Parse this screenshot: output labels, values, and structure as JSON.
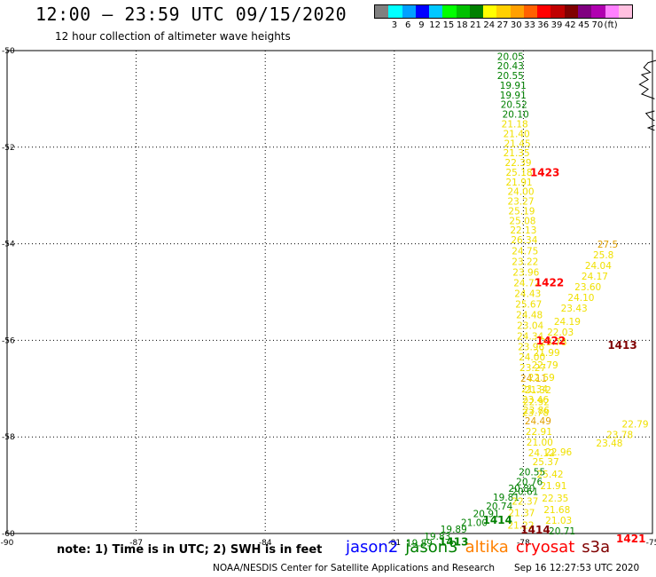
{
  "header": {
    "title": "12:00 – 23:59 UTC 09/15/2020",
    "subtitle": "12 hour collection of altimeter wave heights"
  },
  "scale": {
    "colors": [
      "#808080",
      "#00ffff",
      "#00a0ff",
      "#0000ff",
      "#00c8ff",
      "#00ff00",
      "#00c000",
      "#008000",
      "#ffff00",
      "#ffd000",
      "#ffa000",
      "#ff6000",
      "#ff0000",
      "#c00000",
      "#800000",
      "#800080",
      "#b000b0",
      "#ff80ff",
      "#ffc0e0"
    ],
    "labels": [
      "3",
      "6",
      "9",
      "12",
      "15",
      "18",
      "21",
      "24",
      "27",
      "30",
      "33",
      "36",
      "39",
      "42",
      "45",
      "70",
      "(ft)"
    ]
  },
  "chart_data": {
    "type": "map",
    "lon_range": [
      -90,
      -75
    ],
    "lat_range": [
      -60,
      -50
    ],
    "x_ticks": [
      {
        "v": -90,
        "label": "-90"
      },
      {
        "v": -87,
        "label": "-87"
      },
      {
        "v": -84,
        "label": "-84"
      },
      {
        "v": -81,
        "label": "-81"
      },
      {
        "v": -78,
        "label": "-78"
      },
      {
        "v": -75,
        "label": "-75"
      }
    ],
    "y_ticks": [
      {
        "v": -50,
        "label": "-50"
      },
      {
        "v": -52,
        "label": "-52"
      },
      {
        "v": -54,
        "label": "-54"
      },
      {
        "v": -56,
        "label": "-56"
      },
      {
        "v": -58,
        "label": "-58"
      },
      {
        "v": -60,
        "label": "-60"
      }
    ],
    "grid": "dotted",
    "level_colors": {
      "g": "#008000",
      "y": "#f0e000",
      "o": "#e0a000",
      "r": "#ff0000",
      "d": "#800000"
    },
    "values": [
      {
        "lon": -78.3,
        "lat": -50.19,
        "t": "20.05",
        "c": "g"
      },
      {
        "lon": -78.3,
        "lat": -50.39,
        "t": "20.43",
        "c": "g"
      },
      {
        "lon": -78.3,
        "lat": -50.59,
        "t": "20.55",
        "c": "g"
      },
      {
        "lon": -78.24,
        "lat": -50.79,
        "t": "19.91",
        "c": "g"
      },
      {
        "lon": -78.24,
        "lat": -50.99,
        "t": "19.91",
        "c": "g"
      },
      {
        "lon": -78.22,
        "lat": -51.19,
        "t": "20.52",
        "c": "g"
      },
      {
        "lon": -78.18,
        "lat": -51.39,
        "t": "20.10",
        "c": "g"
      },
      {
        "lon": -78.2,
        "lat": -51.59,
        "t": "21.18",
        "c": "y"
      },
      {
        "lon": -78.16,
        "lat": -51.79,
        "t": "21.40",
        "c": "y"
      },
      {
        "lon": -78.14,
        "lat": -51.99,
        "t": "21.45",
        "c": "y"
      },
      {
        "lon": -78.16,
        "lat": -52.19,
        "t": "21.35",
        "c": "y"
      },
      {
        "lon": -78.12,
        "lat": -52.39,
        "t": "22.39",
        "c": "y"
      },
      {
        "lon": -78.1,
        "lat": -52.59,
        "t": "25.18",
        "c": "y"
      },
      {
        "lon": -78.1,
        "lat": -52.79,
        "t": "21.91",
        "c": "y"
      },
      {
        "lon": -78.06,
        "lat": -52.99,
        "t": "24.00",
        "c": "y"
      },
      {
        "lon": -78.06,
        "lat": -53.19,
        "t": "23.27",
        "c": "y"
      },
      {
        "lon": -78.04,
        "lat": -53.39,
        "t": "25.19",
        "c": "y"
      },
      {
        "lon": -78.02,
        "lat": -53.59,
        "t": "25.08",
        "c": "y"
      },
      {
        "lon": -78.0,
        "lat": -53.79,
        "t": "22.13",
        "c": "y"
      },
      {
        "lon": -77.98,
        "lat": -53.99,
        "t": "26.34",
        "c": "y"
      },
      {
        "lon": -77.96,
        "lat": -54.22,
        "t": "24.75",
        "c": "y"
      },
      {
        "lon": -77.96,
        "lat": -54.44,
        "t": "23.22",
        "c": "y"
      },
      {
        "lon": -77.94,
        "lat": -54.66,
        "t": "23.96",
        "c": "y"
      },
      {
        "lon": -77.92,
        "lat": -54.88,
        "t": "24.72",
        "c": "y"
      },
      {
        "lon": -77.9,
        "lat": -55.1,
        "t": "24.43",
        "c": "y"
      },
      {
        "lon": -77.88,
        "lat": -55.32,
        "t": "25.67",
        "c": "y"
      },
      {
        "lon": -77.86,
        "lat": -55.54,
        "t": "24.48",
        "c": "y"
      },
      {
        "lon": -77.84,
        "lat": -55.76,
        "t": "23.04",
        "c": "y"
      },
      {
        "lon": -77.84,
        "lat": -55.98,
        "t": "24.34",
        "c": "y"
      },
      {
        "lon": -77.82,
        "lat": -56.2,
        "t": "23.96",
        "c": "y"
      },
      {
        "lon": -77.8,
        "lat": -56.42,
        "t": "24.00",
        "c": "y"
      },
      {
        "lon": -77.78,
        "lat": -56.64,
        "t": "23.27",
        "c": "y"
      },
      {
        "lon": -77.76,
        "lat": -56.86,
        "t": "24.11",
        "c": "o"
      },
      {
        "lon": -77.74,
        "lat": -57.08,
        "t": "21.34",
        "c": "y"
      },
      {
        "lon": -77.72,
        "lat": -57.3,
        "t": "23.46",
        "c": "y"
      },
      {
        "lon": -77.7,
        "lat": -57.52,
        "t": "23.86",
        "c": "y"
      },
      {
        "lon": -77.66,
        "lat": -57.74,
        "t": "24.49",
        "c": "o"
      },
      {
        "lon": -77.64,
        "lat": -57.96,
        "t": "22.91",
        "c": "y"
      },
      {
        "lon": -77.62,
        "lat": -58.18,
        "t": "21.00",
        "c": "y"
      },
      {
        "lon": -77.58,
        "lat": -58.4,
        "t": "24.12",
        "c": "y"
      },
      {
        "lon": -76.04,
        "lat": -54.08,
        "t": "27.5",
        "c": "o"
      },
      {
        "lon": -76.14,
        "lat": -54.3,
        "t": "25.8",
        "c": "y"
      },
      {
        "lon": -76.26,
        "lat": -54.52,
        "t": "24.04",
        "c": "y"
      },
      {
        "lon": -76.34,
        "lat": -54.74,
        "t": "24.17",
        "c": "y"
      },
      {
        "lon": -76.5,
        "lat": -54.96,
        "t": "23.60",
        "c": "y"
      },
      {
        "lon": -76.66,
        "lat": -55.18,
        "t": "24.10",
        "c": "y"
      },
      {
        "lon": -76.82,
        "lat": -55.4,
        "t": "23.43",
        "c": "y"
      },
      {
        "lon": -76.98,
        "lat": -55.68,
        "t": "24.19",
        "c": "y"
      },
      {
        "lon": -77.14,
        "lat": -55.9,
        "t": "22.03",
        "c": "y"
      },
      {
        "lon": -77.3,
        "lat": -56.1,
        "t": "23.78",
        "c": "y"
      },
      {
        "lon": -77.46,
        "lat": -56.32,
        "t": "21.99",
        "c": "y"
      },
      {
        "lon": -77.5,
        "lat": -56.58,
        "t": "22.79",
        "c": "y"
      },
      {
        "lon": -77.58,
        "lat": -56.84,
        "t": "22.59",
        "c": "y"
      },
      {
        "lon": -77.66,
        "lat": -57.1,
        "t": "21.32",
        "c": "y"
      },
      {
        "lon": -77.7,
        "lat": -57.34,
        "t": "22.92",
        "c": "y"
      },
      {
        "lon": -77.72,
        "lat": -57.56,
        "t": "23.78",
        "c": "y"
      },
      {
        "lon": -75.4,
        "lat": -57.8,
        "t": "22.79",
        "c": "y"
      },
      {
        "lon": -75.76,
        "lat": -58.02,
        "t": "23.78",
        "c": "y"
      },
      {
        "lon": -76.0,
        "lat": -58.2,
        "t": "23.48",
        "c": "y"
      },
      {
        "lon": -77.18,
        "lat": -58.38,
        "t": "22.96",
        "c": "y"
      },
      {
        "lon": -77.48,
        "lat": -58.58,
        "t": "25.37",
        "c": "y"
      },
      {
        "lon": -77.38,
        "lat": -58.84,
        "t": "25.42",
        "c": "y"
      },
      {
        "lon": -77.3,
        "lat": -59.08,
        "t": "21.91",
        "c": "y"
      },
      {
        "lon": -77.26,
        "lat": -59.34,
        "t": "22.35",
        "c": "y"
      },
      {
        "lon": -77.22,
        "lat": -59.58,
        "t": "21.68",
        "c": "y"
      },
      {
        "lon": -77.18,
        "lat": -59.8,
        "t": "21.03",
        "c": "y"
      },
      {
        "lon": -77.1,
        "lat": -60.02,
        "t": "20.71",
        "c": "g"
      },
      {
        "lon": -77.8,
        "lat": -58.8,
        "t": "20.55",
        "c": "g"
      },
      {
        "lon": -77.86,
        "lat": -59.0,
        "t": "20.76",
        "c": "g"
      },
      {
        "lon": -77.96,
        "lat": -59.2,
        "t": "20.61",
        "c": "g"
      },
      {
        "lon": -78.04,
        "lat": -59.14,
        "t": "20.80",
        "c": "g"
      },
      {
        "lon": -78.4,
        "lat": -59.32,
        "t": "19.81",
        "c": "g"
      },
      {
        "lon": -78.56,
        "lat": -59.5,
        "t": "20.74",
        "c": "g"
      },
      {
        "lon": -78.86,
        "lat": -59.66,
        "t": "20.91",
        "c": "g"
      },
      {
        "lon": -79.14,
        "lat": -59.84,
        "t": "21.00",
        "c": "g"
      },
      {
        "lon": -79.62,
        "lat": -59.98,
        "t": "19.89",
        "c": "g"
      },
      {
        "lon": -80.0,
        "lat": -60.13,
        "t": "19.83",
        "c": "g"
      },
      {
        "lon": -80.42,
        "lat": -60.27,
        "t": "19.89",
        "c": "g"
      },
      {
        "lon": -77.96,
        "lat": -59.4,
        "t": "22.37",
        "c": "y"
      },
      {
        "lon": -78.04,
        "lat": -59.64,
        "t": "21.37",
        "c": "y"
      },
      {
        "lon": -78.06,
        "lat": -59.9,
        "t": "21.22",
        "c": "y"
      }
    ],
    "pass_labels": [
      {
        "lon": -77.5,
        "lat": -52.6,
        "t": "1423",
        "c": "r"
      },
      {
        "lon": -77.4,
        "lat": -54.88,
        "t": "1422",
        "c": "r"
      },
      {
        "lon": -77.36,
        "lat": -56.08,
        "t": "1422",
        "c": "r"
      },
      {
        "lon": -75.7,
        "lat": -56.18,
        "t": "1413",
        "c": "d"
      },
      {
        "lon": -78.6,
        "lat": -59.8,
        "t": "1414",
        "c": "g"
      },
      {
        "lon": -77.72,
        "lat": -60.0,
        "t": "1414",
        "c": "d"
      },
      {
        "lon": -75.5,
        "lat": -60.18,
        "t": "1421",
        "c": "r"
      },
      {
        "lon": -79.62,
        "lat": -60.25,
        "t": "1413",
        "c": "g"
      }
    ],
    "coastline": "upper-right corner, near -75 lon between -50.2 and -51.6 lat"
  },
  "footer": {
    "note": "note:  1) Time is in UTC;  2) SWH is in feet",
    "satellites": [
      {
        "name": "jason2",
        "color": "#0000ff"
      },
      {
        "name": "jason3",
        "color": "#008000"
      },
      {
        "name": "altika",
        "color": "#ff8000"
      },
      {
        "name": "cryosat",
        "color": "#ff0000"
      },
      {
        "name": "s3a",
        "color": "#800000"
      }
    ],
    "credit": "NOAA/NESDIS Center for Satellite Applications and Research",
    "timestamp": "Sep 16 12:27:53 UTC 2020"
  }
}
